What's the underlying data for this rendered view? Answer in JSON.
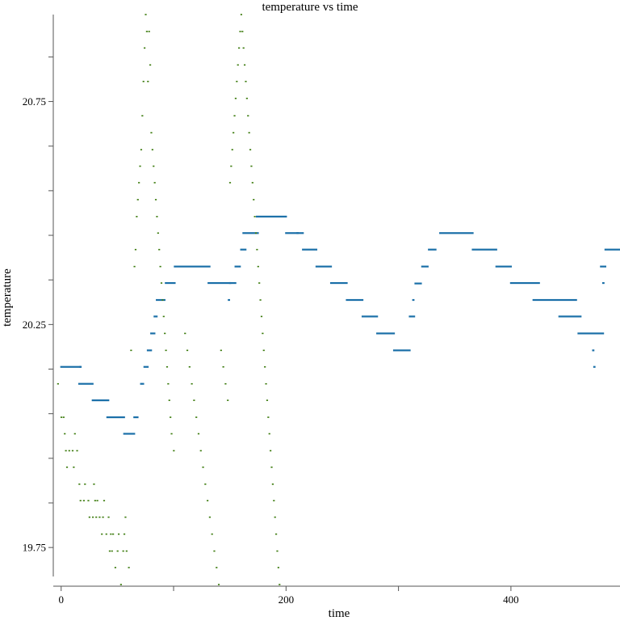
{
  "chart_data": {
    "type": "scatter",
    "title": "temperature vs time",
    "xlabel": "time",
    "ylabel": "temperature",
    "xlim": [
      -7,
      497
    ],
    "ylim": [
      19.685,
      20.945
    ],
    "x_ticks": [
      0,
      200,
      400
    ],
    "x_minor_ticks": [
      100,
      300
    ],
    "y_ticks": [
      19.75,
      20.25,
      20.75
    ],
    "y_tick_labels": [
      "19.75",
      "20.25",
      "20.75"
    ],
    "y_minor_ticks": [
      19.85,
      19.95,
      20.05,
      20.15,
      20.35,
      20.45,
      20.55,
      20.65,
      20.85
    ],
    "grid": false,
    "legend": "none",
    "series": [
      {
        "color": "#1a6fa8",
        "marker_width": 2.2,
        "segments": [
          [
            0,
            17,
            20.155
          ],
          [
            16,
            28,
            20.117
          ],
          [
            28,
            42,
            20.08
          ],
          [
            41,
            56,
            20.042
          ],
          [
            56,
            65,
            20.005
          ],
          [
            65,
            68,
            20.042
          ],
          [
            71,
            73,
            20.117
          ],
          [
            74,
            77,
            20.155
          ],
          [
            77,
            80,
            20.192
          ],
          [
            80,
            83,
            20.23
          ],
          [
            83,
            85,
            20.268
          ],
          [
            85,
            92,
            20.305
          ],
          [
            93,
            101,
            20.343
          ],
          [
            101,
            132,
            20.38
          ],
          [
            131,
            155,
            20.343
          ],
          [
            155,
            159,
            20.38
          ],
          [
            160,
            164,
            20.418
          ],
          [
            162,
            175,
            20.455
          ],
          [
            174,
            200,
            20.492
          ],
          [
            200,
            215,
            20.455
          ],
          [
            215,
            227,
            20.418
          ],
          [
            227,
            240,
            20.38
          ],
          [
            240,
            254,
            20.343
          ],
          [
            254,
            268,
            20.305
          ],
          [
            268,
            281,
            20.268
          ],
          [
            281,
            296,
            20.23
          ],
          [
            296,
            310,
            20.192
          ],
          [
            310,
            314,
            20.268
          ],
          [
            315,
            320,
            20.342
          ],
          [
            321,
            326,
            20.38
          ],
          [
            327,
            333,
            20.418
          ],
          [
            337,
            366,
            20.455
          ],
          [
            366,
            387,
            20.418
          ],
          [
            387,
            400,
            20.38
          ],
          [
            400,
            425,
            20.343
          ],
          [
            420,
            458,
            20.305
          ],
          [
            443,
            462,
            20.268
          ],
          [
            460,
            482,
            20.23
          ],
          [
            480,
            484,
            20.38
          ],
          [
            484,
            497,
            20.418
          ]
        ],
        "points": [
          [
            17,
            20.155
          ],
          [
            149,
            20.305
          ],
          [
            150,
            20.343
          ],
          [
            210,
            20.455
          ],
          [
            313,
            20.305
          ],
          [
            473,
            20.192
          ],
          [
            474,
            20.155
          ],
          [
            482,
            20.343
          ]
        ]
      },
      {
        "color": "#3a7a0b",
        "marker_width": 1.6,
        "points": [
          [
            -3,
            20.117
          ],
          [
            0,
            20.042
          ],
          [
            2,
            20.042
          ],
          [
            3,
            20.005
          ],
          [
            4,
            19.967
          ],
          [
            5,
            19.93
          ],
          [
            7,
            19.967
          ],
          [
            10,
            19.967
          ],
          [
            11,
            19.93
          ],
          [
            12,
            20.005
          ],
          [
            14,
            19.967
          ],
          [
            16,
            19.892
          ],
          [
            17,
            19.855
          ],
          [
            20,
            19.855
          ],
          [
            21,
            19.892
          ],
          [
            24,
            19.855
          ],
          [
            25,
            19.818
          ],
          [
            28,
            19.818
          ],
          [
            29,
            19.892
          ],
          [
            30,
            19.855
          ],
          [
            31,
            19.818
          ],
          [
            32,
            19.855
          ],
          [
            34,
            19.818
          ],
          [
            36,
            19.78
          ],
          [
            37,
            19.818
          ],
          [
            38,
            19.855
          ],
          [
            40,
            19.78
          ],
          [
            42,
            19.818
          ],
          [
            43,
            19.742
          ],
          [
            44,
            19.78
          ],
          [
            45,
            19.742
          ],
          [
            46,
            19.78
          ],
          [
            48,
            19.705
          ],
          [
            50,
            19.742
          ],
          [
            51,
            19.78
          ],
          [
            53,
            19.667
          ],
          [
            55,
            19.742
          ],
          [
            56,
            19.78
          ],
          [
            57,
            19.818
          ],
          [
            58,
            19.742
          ],
          [
            60,
            19.705
          ],
          [
            62,
            20.192
          ],
          [
            65,
            20.38
          ],
          [
            66,
            20.418
          ],
          [
            67,
            20.492
          ],
          [
            68,
            20.53
          ],
          [
            69,
            20.568
          ],
          [
            70,
            20.605
          ],
          [
            71,
            20.642
          ],
          [
            72,
            20.718
          ],
          [
            73,
            20.795
          ],
          [
            74,
            20.87
          ],
          [
            75,
            20.945
          ],
          [
            76,
            20.907
          ],
          [
            77,
            20.795
          ],
          [
            78,
            20.907
          ],
          [
            79,
            20.832
          ],
          [
            80,
            20.68
          ],
          [
            81,
            20.642
          ],
          [
            82,
            20.605
          ],
          [
            83,
            20.568
          ],
          [
            84,
            20.53
          ],
          [
            85,
            20.492
          ],
          [
            86,
            20.455
          ],
          [
            87,
            20.418
          ],
          [
            88,
            20.38
          ],
          [
            89,
            20.343
          ],
          [
            90,
            20.305
          ],
          [
            91,
            20.268
          ],
          [
            92,
            20.23
          ],
          [
            93,
            20.192
          ],
          [
            94,
            20.155
          ],
          [
            95,
            20.117
          ],
          [
            96,
            20.08
          ],
          [
            97,
            20.042
          ],
          [
            98,
            20.005
          ],
          [
            100,
            19.967
          ],
          [
            110,
            20.23
          ],
          [
            112,
            20.192
          ],
          [
            114,
            20.155
          ],
          [
            116,
            20.117
          ],
          [
            118,
            20.08
          ],
          [
            120,
            20.042
          ],
          [
            122,
            20.005
          ],
          [
            124,
            19.967
          ],
          [
            126,
            19.93
          ],
          [
            128,
            19.892
          ],
          [
            130,
            19.855
          ],
          [
            132,
            19.818
          ],
          [
            134,
            19.78
          ],
          [
            136,
            19.742
          ],
          [
            138,
            19.705
          ],
          [
            140,
            19.667
          ],
          [
            142,
            20.192
          ],
          [
            144,
            20.155
          ],
          [
            146,
            20.117
          ],
          [
            148,
            20.08
          ],
          [
            150,
            20.568
          ],
          [
            151,
            20.605
          ],
          [
            152,
            20.642
          ],
          [
            153,
            20.68
          ],
          [
            154,
            20.718
          ],
          [
            155,
            20.757
          ],
          [
            156,
            20.795
          ],
          [
            157,
            20.832
          ],
          [
            158,
            20.87
          ],
          [
            159,
            20.907
          ],
          [
            160,
            20.945
          ],
          [
            161,
            20.907
          ],
          [
            162,
            20.87
          ],
          [
            163,
            20.832
          ],
          [
            164,
            20.795
          ],
          [
            165,
            20.757
          ],
          [
            166,
            20.718
          ],
          [
            167,
            20.68
          ],
          [
            168,
            20.642
          ],
          [
            169,
            20.605
          ],
          [
            170,
            20.568
          ],
          [
            171,
            20.53
          ],
          [
            172,
            20.492
          ],
          [
            173,
            20.455
          ],
          [
            174,
            20.418
          ],
          [
            175,
            20.38
          ],
          [
            176,
            20.343
          ],
          [
            177,
            20.305
          ],
          [
            178,
            20.268
          ],
          [
            179,
            20.23
          ],
          [
            180,
            20.192
          ],
          [
            181,
            20.155
          ],
          [
            182,
            20.117
          ],
          [
            183,
            20.08
          ],
          [
            184,
            20.042
          ],
          [
            185,
            20.005
          ],
          [
            186,
            19.967
          ],
          [
            187,
            19.93
          ],
          [
            188,
            19.892
          ],
          [
            189,
            19.855
          ],
          [
            190,
            19.818
          ],
          [
            191,
            19.78
          ],
          [
            192,
            19.742
          ],
          [
            193,
            19.705
          ],
          [
            194,
            19.667
          ]
        ]
      }
    ]
  }
}
